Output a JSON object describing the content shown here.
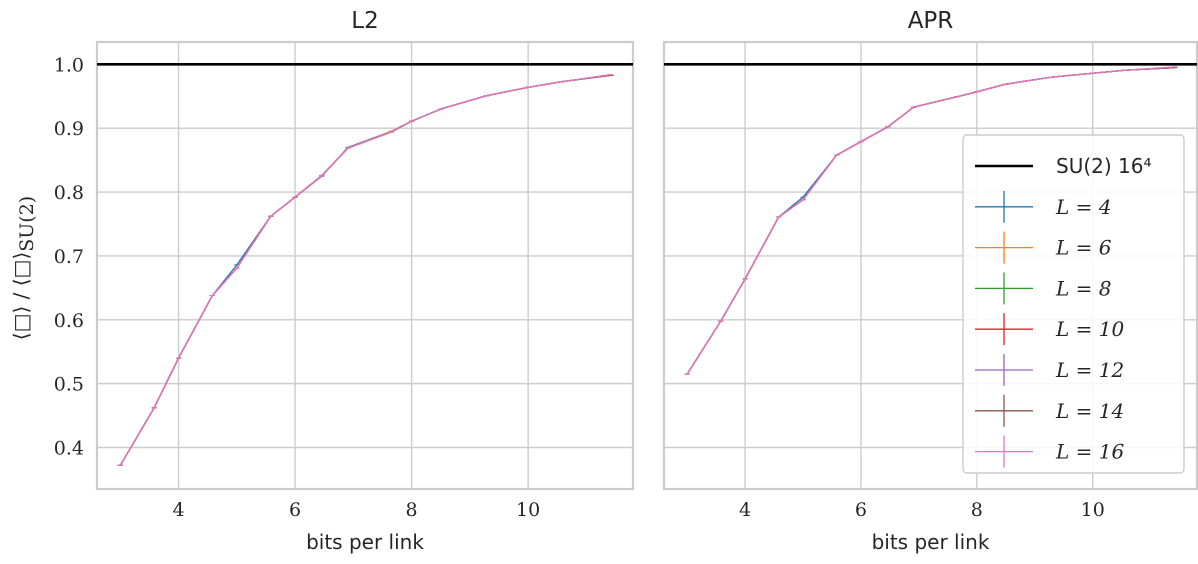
{
  "figure": {
    "ylabel": "⟨□⟩ / ⟨□⟩SU(2)",
    "ylabel_main": "⟨□⟩ / ⟨□⟩",
    "ylabel_sub": "SU(2)"
  },
  "chart_data": [
    {
      "type": "line",
      "title": "L2",
      "xlabel": "bits per link",
      "ylabel": "⟨□⟩ / ⟨□⟩SU(2)",
      "xlim": [
        2.6,
        11.8
      ],
      "ylim": [
        0.335,
        1.035
      ],
      "xticks": [
        4,
        6,
        8,
        10
      ],
      "yticks": [
        0.4,
        0.5,
        0.6,
        0.7,
        0.8,
        0.9,
        1.0
      ],
      "grid": true,
      "x": [
        3.0,
        3.58,
        4.0,
        4.58,
        5.0,
        5.58,
        6.0,
        6.46,
        6.91,
        7.65,
        8.0,
        8.5,
        9.29,
        10.0,
        10.58,
        11.42
      ],
      "reference": {
        "name": "SU(2) 16⁴",
        "value": 1.0,
        "color": "#000000"
      },
      "series": [
        {
          "name": "L = 4",
          "color": "#1f77b4",
          "values": [
            0.372,
            0.462,
            0.54,
            0.638,
            0.686,
            0.762,
            0.792,
            0.825,
            0.87,
            0.895,
            0.911,
            0.93,
            0.951,
            0.964,
            0.973,
            0.983
          ]
        },
        {
          "name": "L = 6",
          "color": "#ff7f0e",
          "values": [
            0.372,
            0.462,
            0.54,
            0.638,
            0.681,
            0.762,
            0.792,
            0.826,
            0.869,
            0.895,
            0.911,
            0.93,
            0.951,
            0.964,
            0.973,
            0.983
          ]
        },
        {
          "name": "L = 8",
          "color": "#2ca02c",
          "values": [
            0.372,
            0.462,
            0.54,
            0.638,
            0.681,
            0.762,
            0.792,
            0.826,
            0.869,
            0.894,
            0.911,
            0.93,
            0.951,
            0.964,
            0.973,
            0.983
          ]
        },
        {
          "name": "L = 10",
          "color": "#d62728",
          "values": [
            0.372,
            0.462,
            0.54,
            0.638,
            0.681,
            0.762,
            0.792,
            0.826,
            0.869,
            0.894,
            0.911,
            0.93,
            0.951,
            0.964,
            0.973,
            0.983
          ]
        },
        {
          "name": "L = 12",
          "color": "#9467bd",
          "values": [
            0.372,
            0.462,
            0.54,
            0.638,
            0.681,
            0.762,
            0.792,
            0.826,
            0.869,
            0.894,
            0.911,
            0.93,
            0.951,
            0.964,
            0.973,
            0.983
          ]
        },
        {
          "name": "L = 14",
          "color": "#8c564b",
          "values": [
            0.372,
            0.462,
            0.54,
            0.638,
            0.681,
            0.762,
            0.792,
            0.826,
            0.869,
            0.894,
            0.911,
            0.93,
            0.951,
            0.964,
            0.973,
            0.983
          ]
        },
        {
          "name": "L = 16",
          "color": "#e377c2",
          "values": [
            0.372,
            0.462,
            0.54,
            0.638,
            0.681,
            0.762,
            0.792,
            0.826,
            0.869,
            0.894,
            0.911,
            0.93,
            0.951,
            0.964,
            0.973,
            0.984
          ]
        }
      ]
    },
    {
      "type": "line",
      "title": "APR",
      "xlabel": "bits per link",
      "ylabel": "",
      "xlim": [
        2.6,
        11.8
      ],
      "ylim": [
        0.335,
        1.035
      ],
      "xticks": [
        4,
        6,
        8,
        10
      ],
      "yticks": [
        0.4,
        0.5,
        0.6,
        0.7,
        0.8,
        0.9,
        1.0
      ],
      "grid": true,
      "legend": "right",
      "x": [
        3.0,
        3.58,
        4.0,
        4.58,
        5.0,
        5.58,
        6.0,
        6.46,
        6.91,
        7.65,
        8.0,
        8.5,
        9.29,
        10.0,
        10.58,
        11.42
      ],
      "reference": {
        "name": "SU(2) 16⁴",
        "value": 1.0,
        "color": "#000000"
      },
      "series": [
        {
          "name": "L = 4",
          "color": "#1f77b4",
          "values": [
            0.515,
            0.598,
            0.664,
            0.761,
            0.792,
            0.858,
            0.879,
            0.902,
            0.933,
            0.949,
            0.957,
            0.969,
            0.98,
            0.986,
            0.991,
            0.995
          ]
        },
        {
          "name": "L = 6",
          "color": "#ff7f0e",
          "values": [
            0.515,
            0.598,
            0.664,
            0.761,
            0.788,
            0.858,
            0.879,
            0.902,
            0.933,
            0.949,
            0.957,
            0.969,
            0.98,
            0.986,
            0.991,
            0.995
          ]
        },
        {
          "name": "L = 8",
          "color": "#2ca02c",
          "values": [
            0.515,
            0.598,
            0.664,
            0.761,
            0.788,
            0.858,
            0.879,
            0.902,
            0.933,
            0.949,
            0.957,
            0.969,
            0.98,
            0.986,
            0.991,
            0.995
          ]
        },
        {
          "name": "L = 10",
          "color": "#d62728",
          "values": [
            0.515,
            0.598,
            0.664,
            0.761,
            0.788,
            0.858,
            0.879,
            0.902,
            0.933,
            0.949,
            0.957,
            0.969,
            0.98,
            0.986,
            0.991,
            0.995
          ]
        },
        {
          "name": "L = 12",
          "color": "#9467bd",
          "values": [
            0.515,
            0.598,
            0.664,
            0.761,
            0.788,
            0.858,
            0.879,
            0.902,
            0.933,
            0.949,
            0.957,
            0.969,
            0.98,
            0.986,
            0.991,
            0.995
          ]
        },
        {
          "name": "L = 14",
          "color": "#8c564b",
          "values": [
            0.515,
            0.598,
            0.664,
            0.761,
            0.788,
            0.858,
            0.879,
            0.902,
            0.933,
            0.949,
            0.957,
            0.969,
            0.98,
            0.986,
            0.991,
            0.995
          ]
        },
        {
          "name": "L = 16",
          "color": "#e377c2",
          "values": [
            0.515,
            0.598,
            0.664,
            0.761,
            0.788,
            0.858,
            0.879,
            0.902,
            0.933,
            0.949,
            0.957,
            0.969,
            0.98,
            0.986,
            0.991,
            0.996
          ]
        }
      ]
    }
  ]
}
